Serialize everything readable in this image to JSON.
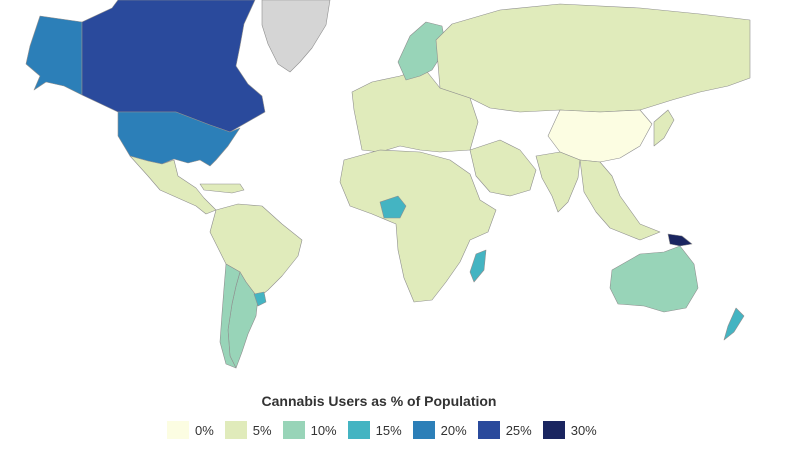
{
  "legend": {
    "title": "Cannabis Users as % of Population",
    "bins": [
      {
        "label": "0%",
        "color": "#fcfde2"
      },
      {
        "label": "5%",
        "color": "#e0ebbb"
      },
      {
        "label": "10%",
        "color": "#98d4b8"
      },
      {
        "label": "15%",
        "color": "#44b4c2"
      },
      {
        "label": "20%",
        "color": "#2c7fb8"
      },
      {
        "label": "25%",
        "color": "#2a4a9c"
      },
      {
        "label": "30%",
        "color": "#1a2560"
      }
    ]
  },
  "no_data_color": "#d5d5d5",
  "regions": [
    {
      "name": "Alaska",
      "bin": "20%"
    },
    {
      "name": "Canada",
      "bin": "25%"
    },
    {
      "name": "United States",
      "bin": "20%"
    },
    {
      "name": "Greenland",
      "bin": "no data"
    },
    {
      "name": "Mexico",
      "bin": "5%"
    },
    {
      "name": "Central America",
      "bin": "5%"
    },
    {
      "name": "South America",
      "bin": "5%"
    },
    {
      "name": "Chile",
      "bin": "10%"
    },
    {
      "name": "Argentina",
      "bin": "10%"
    },
    {
      "name": "Uruguay",
      "bin": "15%"
    },
    {
      "name": "Europe",
      "bin": "5%"
    },
    {
      "name": "Russia",
      "bin": "5%"
    },
    {
      "name": "China",
      "bin": "0%"
    },
    {
      "name": "India",
      "bin": "5%"
    },
    {
      "name": "Africa",
      "bin": "5%"
    },
    {
      "name": "Nigeria",
      "bin": "15%"
    },
    {
      "name": "Madagascar",
      "bin": "15%"
    },
    {
      "name": "Australia",
      "bin": "10%"
    },
    {
      "name": "New Zealand",
      "bin": "15%"
    },
    {
      "name": "Papua New Guinea",
      "bin": "30%"
    }
  ]
}
